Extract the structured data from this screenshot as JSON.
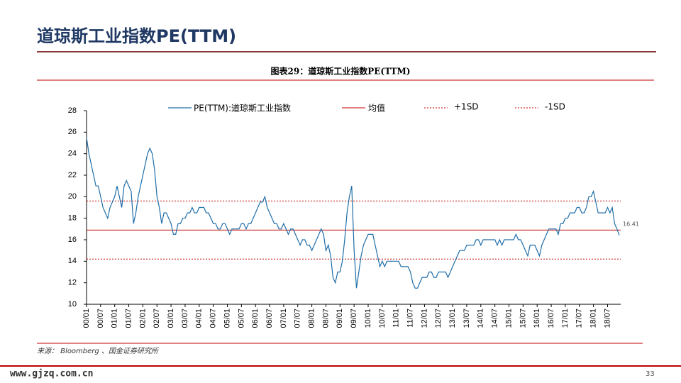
{
  "slide": {
    "title": "道琼斯工业指数PE(TTM)",
    "source": "来源： Bloomberg 、国金证券研究所",
    "website": "www.gjzq.com.cn",
    "page_number": "33"
  },
  "chart_data": {
    "type": "line",
    "title": "图表29：道琼斯工业指数PE(TTM)",
    "categories": [
      "00/01",
      null,
      null,
      null,
      null,
      null,
      "00/07",
      null,
      null,
      null,
      null,
      null,
      "01/01",
      null,
      null,
      null,
      null,
      null,
      "01/07",
      null,
      null,
      null,
      null,
      null,
      "02/01",
      null,
      null,
      null,
      null,
      null,
      "02/07",
      null,
      null,
      null,
      null,
      null,
      "03/01",
      null,
      null,
      null,
      null,
      null,
      "03/07",
      null,
      null,
      null,
      null,
      null,
      "04/01",
      null,
      null,
      null,
      null,
      null,
      "04/07",
      null,
      null,
      null,
      null,
      null,
      "05/01",
      null,
      null,
      null,
      null,
      null,
      "05/07",
      null,
      null,
      null,
      null,
      null,
      "06/01",
      null,
      null,
      null,
      null,
      null,
      "06/07",
      null,
      null,
      null,
      null,
      null,
      "07/01",
      null,
      null,
      null,
      null,
      null,
      "07/07",
      null,
      null,
      null,
      null,
      null,
      "08/01",
      null,
      null,
      null,
      null,
      null,
      "08/07",
      null,
      null,
      null,
      null,
      null,
      "09/01",
      null,
      null,
      null,
      null,
      null,
      "09/07",
      null,
      null,
      null,
      null,
      null,
      "10/01",
      null,
      null,
      null,
      null,
      null,
      "10/07",
      null,
      null,
      null,
      null,
      null,
      "11/01",
      null,
      null,
      null,
      null,
      null,
      "11/07",
      null,
      null,
      null,
      null,
      null,
      "12/01",
      null,
      null,
      null,
      null,
      null,
      "12/07",
      null,
      null,
      null,
      null,
      null,
      "13/01",
      null,
      null,
      null,
      null,
      null,
      "13/07",
      null,
      null,
      null,
      null,
      null,
      "14/01",
      null,
      null,
      null,
      null,
      null,
      "14/07",
      null,
      null,
      null,
      null,
      null,
      "15/01",
      null,
      null,
      null,
      null,
      null,
      "15/07",
      null,
      null,
      null,
      null,
      null,
      "16/01",
      null,
      null,
      null,
      null,
      null,
      "16/07",
      null,
      null,
      null,
      null,
      null,
      "17/01",
      null,
      null,
      null,
      null,
      null,
      "17/07",
      null,
      null,
      null,
      null,
      null,
      "18/01",
      null,
      null,
      null,
      null,
      null,
      "18/07",
      null,
      null,
      null,
      null,
      null
    ],
    "series": [
      {
        "name": "PE(TTM):道琼斯工业指数",
        "color": "#1f6ea8",
        "values": [
          25.5,
          24,
          23,
          22,
          21,
          21,
          20,
          19,
          18.5,
          18,
          19,
          19.5,
          20,
          21,
          20,
          19,
          21,
          21.5,
          21,
          20.5,
          17.5,
          18.5,
          20,
          21,
          22,
          23,
          24,
          24.5,
          24,
          22.5,
          20,
          19,
          17.5,
          18.5,
          18.5,
          18,
          17.5,
          16.5,
          16.5,
          17.5,
          17.5,
          18,
          18,
          18.5,
          18.5,
          19,
          18.5,
          18.5,
          19,
          19,
          19,
          18.5,
          18.5,
          18,
          17.5,
          17.5,
          17,
          17,
          17.5,
          17.5,
          17,
          16.5,
          17,
          17,
          17,
          17,
          17.5,
          17.5,
          17,
          17.5,
          17.5,
          18,
          18.5,
          19,
          19.5,
          19.5,
          20,
          19,
          18.5,
          18,
          17.5,
          17.5,
          17,
          17,
          17.5,
          17,
          16.5,
          17,
          17,
          16.5,
          16,
          15.5,
          16,
          16,
          15.5,
          15.5,
          15,
          15.5,
          16,
          16.5,
          17,
          16.5,
          15,
          15.5,
          14.5,
          12.5,
          12,
          13,
          13,
          14,
          16,
          18.5,
          20,
          21,
          15,
          11.5,
          13,
          14.5,
          15.5,
          16,
          16.5,
          16.5,
          16.5,
          15.5,
          14.5,
          13.5,
          14,
          13.5,
          14,
          14,
          14,
          14,
          14,
          14,
          13.5,
          13.5,
          13.5,
          13.5,
          13,
          12,
          11.5,
          11.5,
          12,
          12.5,
          12.5,
          12.5,
          13,
          13,
          12.5,
          12.5,
          13,
          13,
          13,
          13,
          12.5,
          13,
          13.5,
          14,
          14.5,
          15,
          15,
          15,
          15.5,
          15.5,
          15.5,
          15.5,
          16,
          16,
          15.5,
          16,
          16,
          16,
          16,
          16,
          16,
          15.5,
          16,
          15.5,
          16,
          16,
          16,
          16,
          16,
          16.5,
          16,
          16,
          15.5,
          15,
          14.5,
          15.5,
          15.5,
          15.5,
          15,
          14.5,
          15.5,
          16,
          16.5,
          17,
          17,
          17,
          17,
          16.5,
          17.5,
          17.5,
          18,
          18,
          18.5,
          18.5,
          18.5,
          19,
          19,
          18.5,
          18.5,
          19,
          20,
          20,
          20.5,
          19.5,
          18.5,
          18.5,
          18.5,
          18.5,
          19,
          18.5,
          19,
          17.5,
          17,
          16.41
        ]
      }
    ],
    "hlines": [
      {
        "name": "均值",
        "value": 16.9,
        "color": "#c00000",
        "style": "solid"
      },
      {
        "name": "+1SD",
        "value": 19.6,
        "color": "#c00000",
        "style": "dashed"
      },
      {
        "name": "-1SD",
        "value": 14.2,
        "color": "#c00000",
        "style": "dashed"
      }
    ],
    "ylim": [
      10,
      28
    ],
    "yticks": [
      10,
      12,
      14,
      16,
      18,
      20,
      22,
      24,
      26,
      28
    ],
    "grid": false
  }
}
